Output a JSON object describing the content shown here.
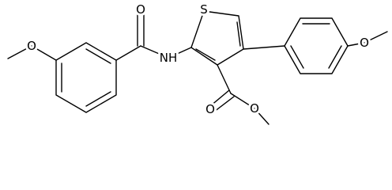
{
  "nodes": [
    {
      "label": "O"
    },
    {
      "label": "O"
    },
    {
      "label": "NH"
    },
    {
      "label": "S"
    },
    {
      "label": "O"
    },
    {
      "label": "O"
    },
    {
      "label": "O"
    }
  ]
}
